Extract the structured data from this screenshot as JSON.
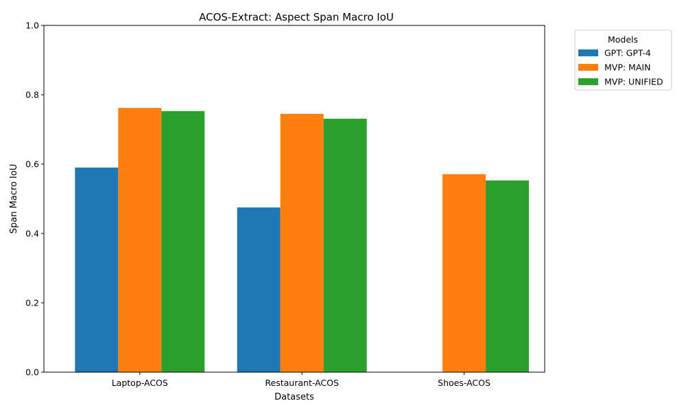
{
  "chart_data": {
    "type": "bar",
    "title": "ACOS-Extract: Aspect Span Macro IoU",
    "xlabel": "Datasets",
    "ylabel": "Span Macro IoU",
    "ylim": [
      0,
      1.0
    ],
    "yticks": [
      "0.0",
      "0.2",
      "0.4",
      "0.6",
      "0.8",
      "1.0"
    ],
    "categories": [
      "Laptop-ACOS",
      "Restaurant-ACOS",
      "Shoes-ACOS"
    ],
    "series": [
      {
        "name": "GPT: GPT-4",
        "color": "#1f77b4",
        "values": [
          0.59,
          0.475,
          null
        ]
      },
      {
        "name": "MVP: MAIN",
        "color": "#ff7f0e",
        "values": [
          0.762,
          0.745,
          0.571
        ]
      },
      {
        "name": "MVP: UNIFIED",
        "color": "#2ca02c",
        "values": [
          0.753,
          0.731,
          0.553
        ]
      }
    ],
    "legend": {
      "title": "Models",
      "placement": "outside-top-right"
    },
    "grid": false
  }
}
